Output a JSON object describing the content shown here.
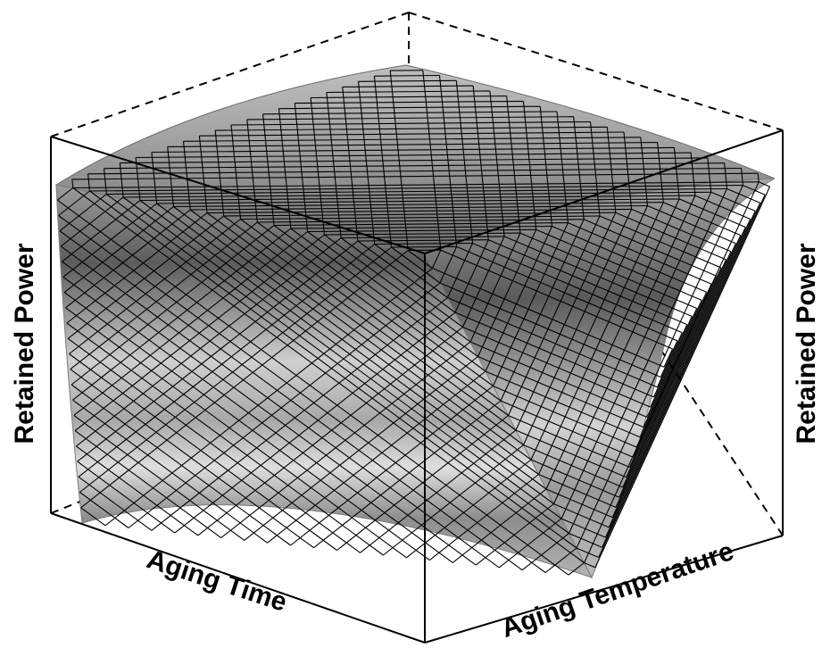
{
  "chart_data": {
    "type": "surface",
    "title": "",
    "xlabel": "Aging Time",
    "ylabel": "Aging Temperature",
    "zlabel": "Retained Power",
    "zlabel_right": "Retained Power",
    "tick_labels": "none",
    "grid": "wireframe mesh on surface",
    "surface_color": "#9a9a9a",
    "shape": "retained power decreases as aging time and aging temperature increase; steepest drop at high temperature"
  }
}
